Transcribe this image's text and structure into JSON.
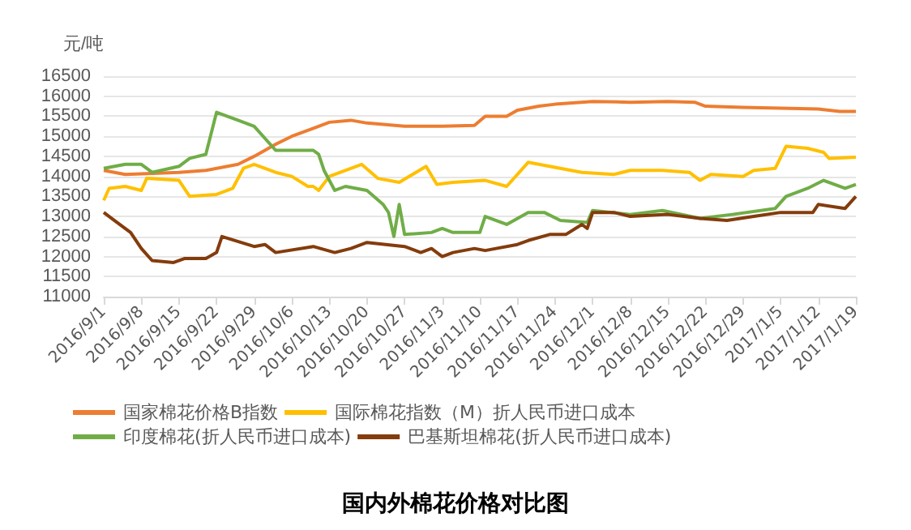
{
  "chart_data": {
    "type": "line",
    "title": "国内外棉花价格对比图",
    "ylabel": "元/吨",
    "xlim": [
      "2016-09-01",
      "2017-01-19"
    ],
    "xticks": [
      {
        "value": "2016-09-01",
        "label": "2016/9/1"
      },
      {
        "value": "2016-09-08",
        "label": "2016/9/8"
      },
      {
        "value": "2016-09-15",
        "label": "2016/9/15"
      },
      {
        "value": "2016-09-22",
        "label": "2016/9/22"
      },
      {
        "value": "2016-09-29",
        "label": "2016/9/29"
      },
      {
        "value": "2016-10-06",
        "label": "2016/10/6"
      },
      {
        "value": "2016-10-13",
        "label": "2016/10/13"
      },
      {
        "value": "2016-10-20",
        "label": "2016/10/20"
      },
      {
        "value": "2016-10-27",
        "label": "2016/10/27"
      },
      {
        "value": "2016-11-03",
        "label": "2016/11/3"
      },
      {
        "value": "2016-11-10",
        "label": "2016/11/10"
      },
      {
        "value": "2016-11-17",
        "label": "2016/11/17"
      },
      {
        "value": "2016-11-24",
        "label": "2016/11/24"
      },
      {
        "value": "2016-12-01",
        "label": "2016/12/1"
      },
      {
        "value": "2016-12-08",
        "label": "2016/12/8"
      },
      {
        "value": "2016-12-15",
        "label": "2016/12/15"
      },
      {
        "value": "2016-12-22",
        "label": "2016/12/22"
      },
      {
        "value": "2016-12-29",
        "label": "2016/12/29"
      },
      {
        "value": "2017-01-05",
        "label": "2017/1/5"
      },
      {
        "value": "2017-01-12",
        "label": "2017/1/12"
      },
      {
        "value": "2017-01-19",
        "label": "2017/1/19"
      }
    ],
    "ylim": [
      11000,
      16500
    ],
    "yticks": [
      11000,
      11500,
      12000,
      12500,
      13000,
      13500,
      14000,
      14500,
      15000,
      15500,
      16000,
      16500
    ],
    "grid": "y",
    "legend": "bottom",
    "marker": "none",
    "line_style": "solid",
    "series": [
      {
        "name": "国家棉花价格B指数",
        "color": "#ed7d31",
        "x": [
          "2016-09-01",
          "2016-09-05",
          "2016-09-15",
          "2016-09-20",
          "2016-09-26",
          "2016-09-29",
          "2016-10-03",
          "2016-10-06",
          "2016-10-10",
          "2016-10-13",
          "2016-10-17",
          "2016-10-20",
          "2016-10-27",
          "2016-11-03",
          "2016-11-09",
          "2016-11-11",
          "2016-11-15",
          "2016-11-17",
          "2016-11-21",
          "2016-11-24",
          "2016-12-01",
          "2016-12-08",
          "2016-12-15",
          "2016-12-20",
          "2016-12-22",
          "2016-12-29",
          "2017-01-05",
          "2017-01-12",
          "2017-01-16",
          "2017-01-19"
        ],
        "values": [
          14150,
          14050,
          14100,
          14150,
          14300,
          14500,
          14800,
          15000,
          15200,
          15350,
          15400,
          15330,
          15250,
          15250,
          15270,
          15500,
          15500,
          15650,
          15750,
          15800,
          15870,
          15850,
          15870,
          15850,
          15750,
          15720,
          15700,
          15680,
          15620,
          15620
        ]
      },
      {
        "name": "国际棉花指数（M）折人民币进口成本",
        "color": "#ffc000",
        "x": [
          "2016-09-01",
          "2016-09-02",
          "2016-09-05",
          "2016-09-08",
          "2016-09-09",
          "2016-09-15",
          "2016-09-17",
          "2016-09-22",
          "2016-09-25",
          "2016-09-27",
          "2016-09-29",
          "2016-10-03",
          "2016-10-06",
          "2016-10-09",
          "2016-10-10",
          "2016-10-11",
          "2016-10-13",
          "2016-10-19",
          "2016-10-22",
          "2016-10-26",
          "2016-10-31",
          "2016-11-02",
          "2016-11-05",
          "2016-11-11",
          "2016-11-15",
          "2016-11-19",
          "2016-11-25",
          "2016-11-29",
          "2016-12-05",
          "2016-12-08",
          "2016-12-14",
          "2016-12-19",
          "2016-12-21",
          "2016-12-23",
          "2016-12-29",
          "2016-12-31",
          "2017-01-04",
          "2017-01-06",
          "2017-01-10",
          "2017-01-13",
          "2017-01-14",
          "2017-01-19"
        ],
        "values": [
          13400,
          13700,
          13750,
          13650,
          13950,
          13900,
          13500,
          13550,
          13700,
          14200,
          14300,
          14100,
          14000,
          13750,
          13750,
          13650,
          14000,
          14300,
          13950,
          13850,
          14250,
          13800,
          13850,
          13900,
          13750,
          14350,
          14200,
          14100,
          14050,
          14150,
          14150,
          14100,
          13900,
          14050,
          14000,
          14150,
          14200,
          14750,
          14700,
          14600,
          14450,
          14480
        ]
      },
      {
        "name": "印度棉花(折人民币进口成本)",
        "color": "#70ad47",
        "x": [
          "2016-09-01",
          "2016-09-05",
          "2016-09-08",
          "2016-09-10",
          "2016-09-15",
          "2016-09-17",
          "2016-09-20",
          "2016-09-22",
          "2016-09-26",
          "2016-09-29",
          "2016-10-03",
          "2016-10-10",
          "2016-10-11",
          "2016-10-12",
          "2016-10-14",
          "2016-10-16",
          "2016-10-20",
          "2016-10-23",
          "2016-10-24",
          "2016-10-25",
          "2016-10-26",
          "2016-10-27",
          "2016-11-01",
          "2016-11-03",
          "2016-11-05",
          "2016-11-10",
          "2016-11-11",
          "2016-11-15",
          "2016-11-19",
          "2016-11-22",
          "2016-11-25",
          "2016-11-30",
          "2016-12-01",
          "2016-12-08",
          "2016-12-14",
          "2016-12-21",
          "2016-12-27",
          "2017-01-04",
          "2017-01-06",
          "2017-01-10",
          "2017-01-13",
          "2017-01-17",
          "2017-01-19"
        ],
        "values": [
          14200,
          14300,
          14300,
          14100,
          14250,
          14450,
          14550,
          15600,
          15400,
          15250,
          14650,
          14650,
          14550,
          14150,
          13650,
          13750,
          13650,
          13300,
          13100,
          12500,
          13300,
          12550,
          12600,
          12700,
          12600,
          12600,
          13000,
          12800,
          13100,
          13100,
          12900,
          12850,
          13150,
          13050,
          13150,
          12950,
          13050,
          13200,
          13500,
          13700,
          13900,
          13700,
          13800
        ]
      },
      {
        "name": "巴基斯坦棉花(折人民币进口成本)",
        "color": "#843c0c",
        "x": [
          "2016-09-01",
          "2016-09-03",
          "2016-09-06",
          "2016-09-08",
          "2016-09-10",
          "2016-09-14",
          "2016-09-16",
          "2016-09-20",
          "2016-09-22",
          "2016-09-23",
          "2016-09-29",
          "2016-10-01",
          "2016-10-03",
          "2016-10-10",
          "2016-10-14",
          "2016-10-17",
          "2016-10-20",
          "2016-10-27",
          "2016-10-30",
          "2016-11-01",
          "2016-11-03",
          "2016-11-05",
          "2016-11-09",
          "2016-11-11",
          "2016-11-17",
          "2016-11-19",
          "2016-11-23",
          "2016-11-26",
          "2016-11-29",
          "2016-11-30",
          "2016-12-01",
          "2016-12-05",
          "2016-12-08",
          "2016-12-15",
          "2016-12-21",
          "2016-12-26",
          "2016-12-31",
          "2017-01-05",
          "2017-01-11",
          "2017-01-12",
          "2017-01-17",
          "2017-01-19"
        ],
        "values": [
          13100,
          12900,
          12600,
          12200,
          11900,
          11850,
          11950,
          11950,
          12100,
          12500,
          12250,
          12300,
          12100,
          12250,
          12100,
          12200,
          12350,
          12250,
          12100,
          12200,
          12000,
          12100,
          12200,
          12150,
          12300,
          12400,
          12550,
          12550,
          12800,
          12700,
          13100,
          13100,
          13000,
          13050,
          12950,
          12900,
          13000,
          13100,
          13100,
          13300,
          13200,
          13500
        ]
      }
    ]
  }
}
